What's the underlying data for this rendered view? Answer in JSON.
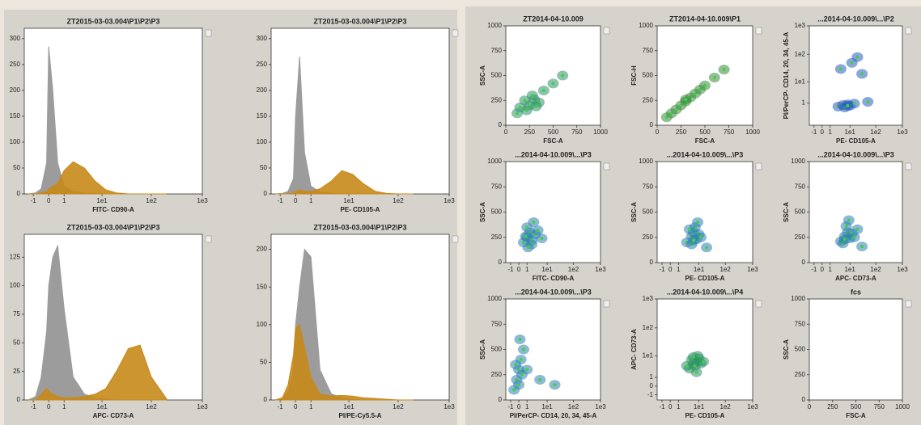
{
  "chart_data": [
    {
      "type": "area",
      "title": "ZT2015-03-03.004\\P1\\P2\\P3",
      "x_label": "FITC- CD90-A",
      "xscale": "symlog",
      "xlim": [
        -2,
        1000
      ],
      "xticks": [
        -1,
        0,
        1,
        {
          "value": 10,
          "label": "1e1"
        },
        {
          "value": 100,
          "label": "1e2"
        },
        {
          "value": 1000,
          "label": "1e3"
        }
      ],
      "ylim": [
        0,
        320
      ],
      "yticks": [
        0,
        50,
        100,
        150,
        200,
        250,
        300
      ],
      "x": [
        -1.5,
        -0.8,
        -0.4,
        -0.1,
        0,
        0.2,
        0.5,
        1,
        2,
        4,
        7,
        12,
        20,
        35,
        60,
        100,
        200
      ],
      "series": [
        {
          "color": "#9c9c9c",
          "values": [
            0,
            2,
            10,
            60,
            285,
            200,
            60,
            15,
            5,
            2,
            1,
            0,
            0,
            0,
            0,
            0,
            0
          ]
        },
        {
          "color": "#c8891a",
          "values": [
            0,
            0,
            2,
            5,
            10,
            15,
            20,
            45,
            62,
            50,
            25,
            8,
            2,
            0,
            0,
            0,
            0
          ]
        }
      ]
    },
    {
      "type": "area",
      "title": "ZT2015-03-03.004\\P1\\P2\\P3",
      "x_label": "PE- CD105-A",
      "xscale": "symlog",
      "xlim": [
        -2,
        1000
      ],
      "xticks": [
        -1,
        0,
        1,
        {
          "value": 10,
          "label": "1e1"
        },
        {
          "value": 100,
          "label": "1e2"
        },
        {
          "value": 1000,
          "label": "1e3"
        }
      ],
      "ylim": [
        0,
        320
      ],
      "yticks": [
        0,
        50,
        100,
        150,
        200,
        250,
        300
      ],
      "x": [
        -1.5,
        -0.8,
        -0.4,
        -0.1,
        0,
        0.2,
        0.5,
        1,
        2,
        4,
        7,
        12,
        20,
        35,
        60,
        100,
        200
      ],
      "series": [
        {
          "color": "#9c9c9c",
          "values": [
            0,
            1,
            5,
            30,
            150,
            265,
            80,
            15,
            4,
            1,
            0,
            0,
            0,
            0,
            0,
            0,
            0
          ]
        },
        {
          "color": "#c8891a",
          "values": [
            0,
            0,
            0,
            2,
            5,
            8,
            5,
            5,
            10,
            25,
            45,
            38,
            20,
            5,
            1,
            0,
            0
          ]
        }
      ]
    },
    {
      "type": "area",
      "title": "ZT2015-03-03.004\\P1\\P2\\P3",
      "x_label": "APC- CD73-A",
      "xscale": "symlog",
      "xlim": [
        -2,
        1000
      ],
      "xticks": [
        -1,
        0,
        1,
        {
          "value": 10,
          "label": "1e1"
        },
        {
          "value": 100,
          "label": "1e2"
        },
        {
          "value": 1000,
          "label": "1e3"
        }
      ],
      "ylim": [
        0,
        145
      ],
      "yticks": [
        0,
        25,
        50,
        75,
        100,
        125
      ],
      "x": [
        -1.5,
        -0.8,
        -0.4,
        -0.1,
        0,
        0.2,
        0.5,
        1,
        2,
        4,
        7,
        12,
        20,
        35,
        60,
        100,
        200
      ],
      "series": [
        {
          "color": "#9c9c9c",
          "values": [
            0,
            3,
            20,
            60,
            100,
            125,
            135,
            80,
            20,
            5,
            2,
            1,
            0,
            0,
            0,
            0,
            0
          ]
        },
        {
          "color": "#c8891a",
          "values": [
            0,
            0,
            5,
            10,
            8,
            5,
            3,
            2,
            2,
            3,
            5,
            10,
            25,
            45,
            48,
            20,
            1
          ]
        }
      ]
    },
    {
      "type": "area",
      "title": "ZT2015-03-03.004\\P1\\P2\\P3",
      "x_label": "PI/PE-Cy5.5-A",
      "xscale": "symlog",
      "xlim": [
        -2,
        1000
      ],
      "xticks": [
        -1,
        0,
        1,
        {
          "value": 10,
          "label": "1e1"
        },
        {
          "value": 100,
          "label": "1e2"
        },
        {
          "value": 1000,
          "label": "1e3"
        }
      ],
      "ylim": [
        0,
        220
      ],
      "yticks": [
        0,
        50,
        100,
        150,
        200
      ],
      "x": [
        -1.5,
        -0.8,
        -0.4,
        -0.1,
        0,
        0.2,
        0.5,
        1,
        2,
        4,
        7,
        12,
        20,
        35,
        60,
        100,
        200
      ],
      "series": [
        {
          "color": "#9c9c9c",
          "values": [
            0,
            2,
            10,
            40,
            100,
            150,
            200,
            190,
            40,
            8,
            3,
            1,
            0,
            0,
            0,
            0,
            0
          ]
        },
        {
          "color": "#c8891a",
          "values": [
            0,
            3,
            20,
            60,
            95,
            100,
            70,
            30,
            8,
            5,
            6,
            5,
            3,
            2,
            1,
            0,
            0
          ]
        }
      ]
    },
    {
      "type": "scatter",
      "title": "ZT2014-04-10.009",
      "x_label": "FSC-A",
      "y_label": "SSC-A",
      "color": "#2f8f6a",
      "xlim": [
        0,
        1000
      ],
      "xticks": [
        0,
        250,
        500,
        750,
        1000
      ],
      "ylim": [
        0,
        1000
      ],
      "yticks": [
        0,
        250,
        500,
        750,
        1000
      ],
      "x": [
        150,
        200,
        250,
        300,
        350,
        220,
        280,
        400,
        500,
        120,
        600,
        320
      ],
      "y": [
        180,
        250,
        200,
        260,
        230,
        150,
        300,
        350,
        420,
        120,
        500,
        190
      ]
    },
    {
      "type": "scatter",
      "title": "ZT2014-04-10.009\\P1",
      "x_label": "FSC-A",
      "y_label": "FSC-H",
      "color": "#3a8a3a",
      "xlim": [
        0,
        1000
      ],
      "xticks": [
        0,
        250,
        500,
        750,
        1000
      ],
      "ylim": [
        0,
        1000
      ],
      "yticks": [
        0,
        250,
        500,
        750,
        1000
      ],
      "x": [
        100,
        150,
        200,
        250,
        300,
        350,
        400,
        450,
        500,
        600,
        700,
        300
      ],
      "y": [
        80,
        120,
        160,
        200,
        240,
        280,
        320,
        360,
        400,
        480,
        560,
        260
      ]
    },
    {
      "type": "scatter",
      "title": "...2014-04-10.009\\...\\P2",
      "x_label": "PE- CD105-A",
      "y_label": "PI/PerCP- CD14, 20, 34, 45-A",
      "color": "#2a5cc0",
      "xscale": "symlog",
      "yscale": "symlog",
      "xlim": [
        -2,
        1000
      ],
      "xticks": [
        -1,
        0,
        1,
        {
          "value": 10,
          "label": "1e1"
        },
        {
          "value": 100,
          "label": "1e2"
        },
        {
          "value": 1000,
          "label": "1e3"
        }
      ],
      "ylim": [
        -2,
        1000
      ],
      "yticks": [
        1,
        {
          "value": 10,
          "label": "1e1"
        },
        {
          "value": 100,
          "label": "1e2"
        },
        {
          "value": 1000,
          "label": "1e3"
        }
      ],
      "x": [
        3,
        5,
        8,
        10,
        15,
        6,
        4,
        12,
        20,
        30,
        50,
        8
      ],
      "y": [
        0.5,
        0.7,
        0.8,
        0.6,
        0.9,
        0.4,
        30,
        50,
        80,
        20,
        1.2,
        0.6
      ]
    },
    {
      "type": "scatter",
      "title": "...2014-04-10.009\\...\\P3",
      "x_label": "FITC- CD90-A",
      "y_label": "SSC-A",
      "color": "#2f7fb0",
      "xscale": "symlog",
      "xlim": [
        -2,
        1000
      ],
      "xticks": [
        -1,
        0,
        1,
        {
          "value": 10,
          "label": "1e1"
        },
        {
          "value": 100,
          "label": "1e2"
        },
        {
          "value": 1000,
          "label": "1e3"
        }
      ],
      "ylim": [
        0,
        1000
      ],
      "yticks": [
        0,
        250,
        500,
        750,
        1000
      ],
      "x": [
        0.5,
        1,
        1.5,
        2,
        3,
        1,
        2,
        0.8,
        4,
        2.5,
        1.2,
        6
      ],
      "y": [
        200,
        250,
        300,
        220,
        280,
        350,
        180,
        260,
        320,
        400,
        150,
        240
      ]
    },
    {
      "type": "scatter",
      "title": "...2014-04-10.009\\...\\P3",
      "x_label": "PE- CD105-A",
      "y_label": "SSC-A",
      "color": "#2f7fb0",
      "xscale": "symlog",
      "xlim": [
        -2,
        1000
      ],
      "xticks": [
        -1,
        0,
        1,
        {
          "value": 10,
          "label": "1e1"
        },
        {
          "value": 100,
          "label": "1e2"
        },
        {
          "value": 1000,
          "label": "1e3"
        }
      ],
      "ylim": [
        0,
        1000
      ],
      "yticks": [
        0,
        250,
        500,
        750,
        1000
      ],
      "x": [
        3,
        5,
        6,
        8,
        10,
        7,
        5,
        12,
        4,
        9,
        20,
        6
      ],
      "y": [
        200,
        260,
        300,
        230,
        280,
        350,
        180,
        250,
        330,
        400,
        150,
        220
      ]
    },
    {
      "type": "scatter",
      "title": "...2014-04-10.009\\...\\P3",
      "x_label": "APC- CD73-A",
      "y_label": "SSC-A",
      "color": "#2f7fb0",
      "xscale": "symlog",
      "xlim": [
        -2,
        1000
      ],
      "xticks": [
        -1,
        0,
        1,
        {
          "value": 10,
          "label": "1e1"
        },
        {
          "value": 100,
          "label": "1e2"
        },
        {
          "value": 1000,
          "label": "1e3"
        }
      ],
      "ylim": [
        0,
        1000
      ],
      "yticks": [
        0,
        250,
        500,
        750,
        1000
      ],
      "x": [
        4,
        6,
        8,
        10,
        12,
        7,
        5,
        15,
        20,
        9,
        30,
        6
      ],
      "y": [
        210,
        260,
        300,
        240,
        290,
        360,
        190,
        250,
        330,
        420,
        160,
        230
      ]
    },
    {
      "type": "scatter",
      "title": "...2014-04-10.009\\...\\P3",
      "x_label": "PI/PerCP- CD14, 20, 34, 45-A",
      "y_label": "SSC-A",
      "color": "#2f7fb0",
      "xscale": "symlog",
      "xlim": [
        -2,
        1000
      ],
      "xticks": [
        -1,
        0,
        1,
        {
          "value": 10,
          "label": "1e1"
        },
        {
          "value": 100,
          "label": "1e2"
        },
        {
          "value": 1000,
          "label": "1e3"
        }
      ],
      "ylim": [
        0,
        1000
      ],
      "yticks": [
        0,
        250,
        500,
        750,
        1000
      ],
      "x": [
        -0.5,
        -0.2,
        0,
        0.2,
        0.3,
        0,
        -0.3,
        0.5,
        1,
        0.1,
        5,
        20
      ],
      "y": [
        100,
        200,
        300,
        400,
        250,
        150,
        350,
        500,
        300,
        600,
        200,
        150
      ]
    },
    {
      "type": "scatter",
      "title": "...2014-04-10.009\\...\\P4",
      "x_label": "PE- CD105-A",
      "y_label": "APC- CD73-A",
      "color": "#2f8f6a",
      "xscale": "symlog",
      "yscale": "symlog",
      "xlim": [
        -2,
        1000
      ],
      "xticks": [
        -1,
        0,
        1,
        {
          "value": 10,
          "label": "1e1"
        },
        {
          "value": 100,
          "label": "1e2"
        },
        {
          "value": 1000,
          "label": "1e3"
        }
      ],
      "ylim": [
        -2,
        1000
      ],
      "yticks": [
        -1,
        0,
        1,
        {
          "value": 10,
          "label": "1e1"
        },
        {
          "value": 100,
          "label": "1e2"
        },
        {
          "value": 1000,
          "label": "1e3"
        }
      ],
      "x": [
        4,
        6,
        8,
        10,
        7,
        5,
        9,
        12,
        6,
        15,
        3,
        8
      ],
      "y": [
        3,
        5,
        6,
        8,
        4,
        7,
        10,
        5,
        9,
        6,
        4,
        2
      ]
    },
    {
      "type": "scatter",
      "title": "fcs",
      "x_label": "FSC-A",
      "y_label": "SSC-A",
      "color": "#2f7fb0",
      "xlim": [
        0,
        1000
      ],
      "xticks": [
        0,
        250,
        500,
        750,
        1000
      ],
      "ylim": [
        0,
        1000
      ],
      "yticks": [
        0,
        250,
        500,
        750,
        1000
      ],
      "x": [],
      "y": []
    }
  ]
}
